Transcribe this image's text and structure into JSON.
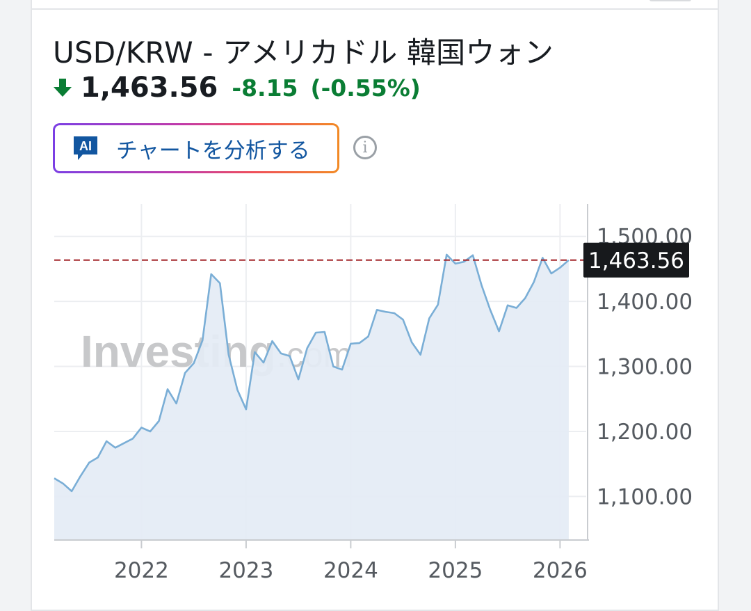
{
  "header": {
    "title": "USD/KRW - アメリカドル 韓国ウォン",
    "price": "1,463.56",
    "change": "-8.15",
    "change_pct": "(-0.55%)",
    "direction": "down",
    "change_color": "#0a7d34"
  },
  "ai_button": {
    "icon_text": "AI",
    "label": "チャートを分析する"
  },
  "info_icon": "i",
  "watermark": {
    "brand": "Investing",
    "suffix": ".com"
  },
  "chart_data": {
    "type": "area",
    "title": "",
    "xlabel": "",
    "ylabel": "",
    "x_ticks": [
      "2022",
      "2023",
      "2024",
      "2025",
      "2026"
    ],
    "y_ticks": [
      "1,100.00",
      "1,200.00",
      "1,300.00",
      "1,400.00",
      "1,500.00"
    ],
    "ylim": [
      1033,
      1550
    ],
    "xlim": [
      "2021-03",
      "2026-04"
    ],
    "current_value": 1463.56,
    "current_value_label": "1,463.56",
    "line_color": "#7aaed6",
    "fill_color": "#e4ecf5",
    "reference_line_color": "#a3262a",
    "series": [
      {
        "x": [
          "2021-03",
          "2021-04",
          "2021-05",
          "2021-06",
          "2021-07",
          "2021-08",
          "2021-09",
          "2021-10",
          "2021-11",
          "2021-12",
          "2022-01",
          "2022-02",
          "2022-03",
          "2022-04",
          "2022-05",
          "2022-06",
          "2022-07",
          "2022-08",
          "2022-09",
          "2022-10",
          "2022-11",
          "2022-12",
          "2023-01",
          "2023-02",
          "2023-03",
          "2023-04",
          "2023-05",
          "2023-06",
          "2023-07",
          "2023-08",
          "2023-09",
          "2023-10",
          "2023-11",
          "2023-12",
          "2024-01",
          "2024-02",
          "2024-03",
          "2024-04",
          "2024-05",
          "2024-06",
          "2024-07",
          "2024-08",
          "2024-09",
          "2024-10",
          "2024-11",
          "2024-12",
          "2025-01",
          "2025-02",
          "2025-03",
          "2025-04",
          "2025-05",
          "2025-06",
          "2025-07",
          "2025-08",
          "2025-09",
          "2025-10",
          "2025-11",
          "2025-12",
          "2026-01",
          "2026-02"
        ],
        "values": [
          1128,
          1120,
          1108,
          1131,
          1152,
          1160,
          1185,
          1175,
          1182,
          1189,
          1206,
          1200,
          1216,
          1265,
          1243,
          1290,
          1305,
          1340,
          1442,
          1428,
          1318,
          1264,
          1234,
          1322,
          1306,
          1339,
          1320,
          1316,
          1280,
          1328,
          1352,
          1353,
          1300,
          1295,
          1335,
          1336,
          1346,
          1387,
          1384,
          1382,
          1372,
          1337,
          1318,
          1374,
          1395,
          1472,
          1458,
          1461,
          1471,
          1425,
          1387,
          1354,
          1394,
          1390,
          1405,
          1430,
          1467,
          1443,
          1452,
          1463.56
        ]
      }
    ]
  }
}
